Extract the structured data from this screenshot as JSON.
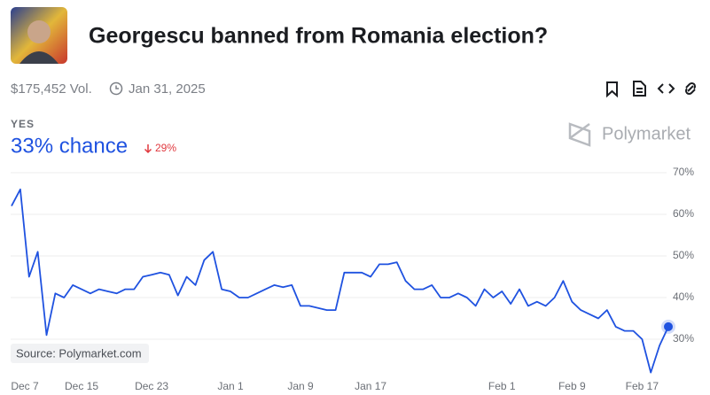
{
  "header": {
    "title": "Georgescu banned from Romania election?",
    "volume": "$175,452 Vol.",
    "end_date": "Jan 31, 2025"
  },
  "outcome": {
    "name": "YES",
    "chance_label": "33% chance",
    "change_label": "29%"
  },
  "brand": "Polymarket",
  "source": "Source: Polymarket.com",
  "chart_data": {
    "type": "line",
    "x": [
      "Dec 7",
      "Dec 8",
      "Dec 9",
      "Dec 10",
      "Dec 11",
      "Dec 12",
      "Dec 13",
      "Dec 14",
      "Dec 15",
      "Dec 16",
      "Dec 17",
      "Dec 18",
      "Dec 19",
      "Dec 20",
      "Dec 21",
      "Dec 22",
      "Dec 23",
      "Dec 24",
      "Dec 25",
      "Dec 26",
      "Dec 27",
      "Dec 28",
      "Dec 29",
      "Dec 30",
      "Dec 31",
      "Jan 1",
      "Jan 2",
      "Jan 3",
      "Jan 4",
      "Jan 5",
      "Jan 6",
      "Jan 7",
      "Jan 8",
      "Jan 9",
      "Jan 10",
      "Jan 11",
      "Jan 12",
      "Jan 13",
      "Jan 14",
      "Jan 15",
      "Jan 16",
      "Jan 17",
      "Jan 18",
      "Jan 19",
      "Jan 20",
      "Jan 21",
      "Jan 22",
      "Jan 23",
      "Jan 24",
      "Jan 25",
      "Jan 26",
      "Jan 27",
      "Jan 28",
      "Jan 29",
      "Jan 30",
      "Jan 31",
      "Feb 1",
      "Feb 2",
      "Feb 3",
      "Feb 4",
      "Feb 5",
      "Feb 6",
      "Feb 7",
      "Feb 8",
      "Feb 9",
      "Feb 10",
      "Feb 11",
      "Feb 12",
      "Feb 13",
      "Feb 14",
      "Feb 15",
      "Feb 16",
      "Feb 17",
      "Feb 18",
      "Feb 19",
      "Feb 20"
    ],
    "series": [
      {
        "name": "YES",
        "color": "#1f52e0",
        "values": [
          62,
          66,
          45,
          51,
          31,
          41,
          40,
          43,
          42,
          41,
          42,
          41.5,
          41,
          42,
          42,
          45,
          45.5,
          46,
          45.5,
          40.5,
          45,
          43,
          49,
          51,
          42,
          41.5,
          40,
          40,
          41,
          42,
          43,
          42.5,
          43,
          38,
          38,
          37.5,
          37,
          37,
          46,
          46,
          46,
          45,
          48,
          48,
          48.5,
          44,
          42,
          42,
          43,
          40,
          40,
          41,
          40,
          38,
          42,
          40,
          41.5,
          38.5,
          42,
          38,
          39,
          38,
          40,
          44,
          39,
          37,
          36,
          35,
          37,
          33,
          32,
          32,
          30,
          22,
          28.5,
          33
        ]
      }
    ],
    "xticks": [
      "Dec 7",
      "Dec 15",
      "Dec 23",
      "Jan 1",
      "Jan 9",
      "Jan 17",
      "Feb 1",
      "Feb 9",
      "Feb 17"
    ],
    "ylim": [
      22,
      70
    ],
    "yticks": [
      {
        "value": 30,
        "label": "30%"
      },
      {
        "value": 40,
        "label": "40%"
      },
      {
        "value": 50,
        "label": "50%"
      },
      {
        "value": 60,
        "label": "60%"
      },
      {
        "value": 70,
        "label": "70%"
      }
    ],
    "grid": true
  }
}
